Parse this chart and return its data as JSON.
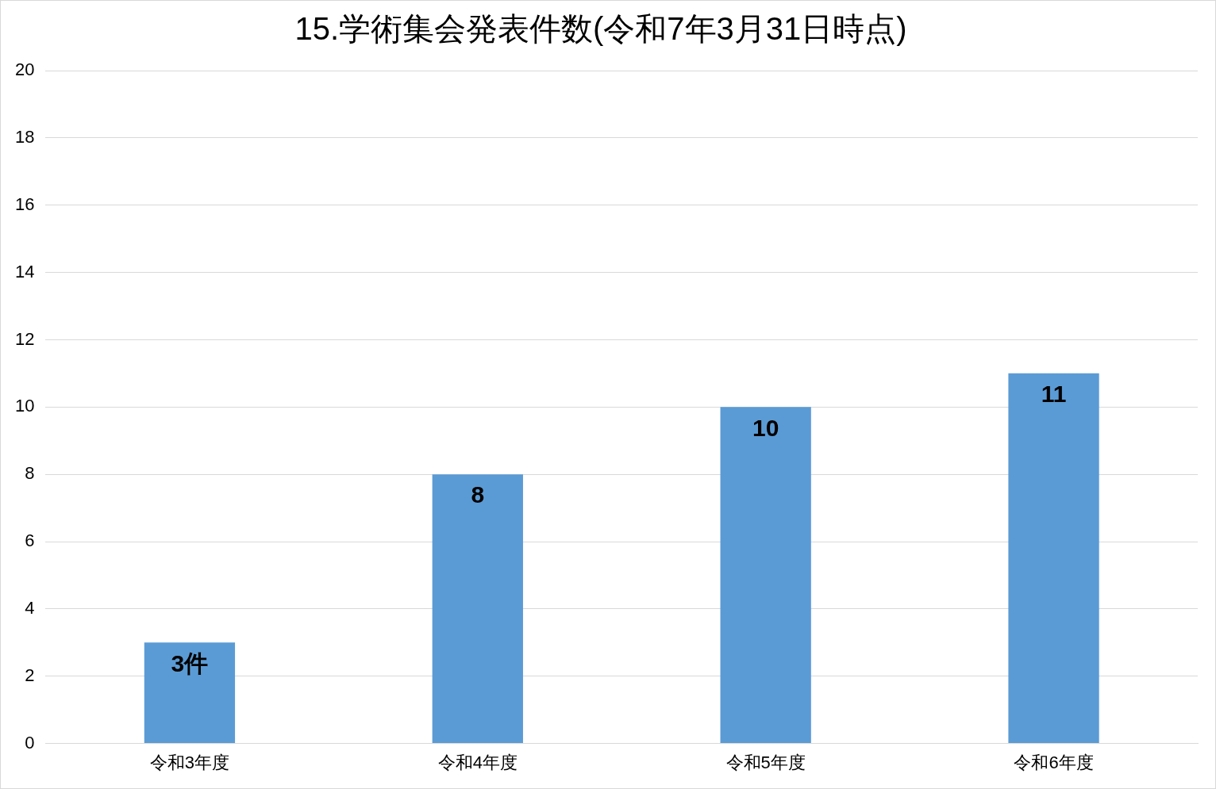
{
  "chart_data": {
    "type": "bar",
    "title": "15.学術集会発表件数(令和7年3月31日時点)",
    "categories": [
      "令和3年度",
      "令和4年度",
      "令和5年度",
      "令和6年度"
    ],
    "values": [
      3,
      8,
      10,
      11
    ],
    "value_labels": [
      "3件",
      "8",
      "10",
      "11"
    ],
    "color": "#5b9bd5",
    "ylim": [
      0,
      20
    ],
    "yticks": [
      0,
      2,
      4,
      6,
      8,
      10,
      12,
      14,
      16,
      18,
      20
    ],
    "grid": "y"
  }
}
